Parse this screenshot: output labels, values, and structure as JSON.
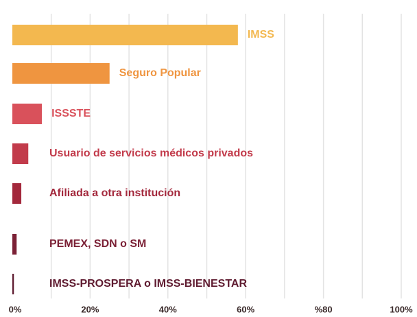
{
  "chart_data": {
    "type": "bar",
    "orientation": "horizontal",
    "categories": [
      "IMSS",
      "Seguro Popular",
      "ISSSTE",
      "Usuario de servicios médicos privados",
      "Afiliada a otra institución",
      "PEMEX, SDN o SM",
      "IMSS-PROSPERA o IMSS-BIENESTAR"
    ],
    "values": [
      58,
      25,
      7.6,
      4.1,
      2.3,
      1.1,
      0.4
    ],
    "colors": [
      "#f3b84f",
      "#ef9540",
      "#d9515b",
      "#c23b4b",
      "#a3283c",
      "#7b2136",
      "#5e1a2f"
    ],
    "xlim": [
      0,
      100
    ],
    "xticks": [
      {
        "value": 0,
        "label": "0%"
      },
      {
        "value": 20,
        "label": "20%"
      },
      {
        "value": 40,
        "label": "40%"
      },
      {
        "value": 60,
        "label": "60%"
      },
      {
        "value": 80,
        "label": "%80"
      },
      {
        "value": 100,
        "label": "100%"
      }
    ],
    "xgrid": [
      10,
      20,
      30,
      40,
      50,
      60,
      70,
      80,
      90,
      100
    ],
    "grid": true
  }
}
